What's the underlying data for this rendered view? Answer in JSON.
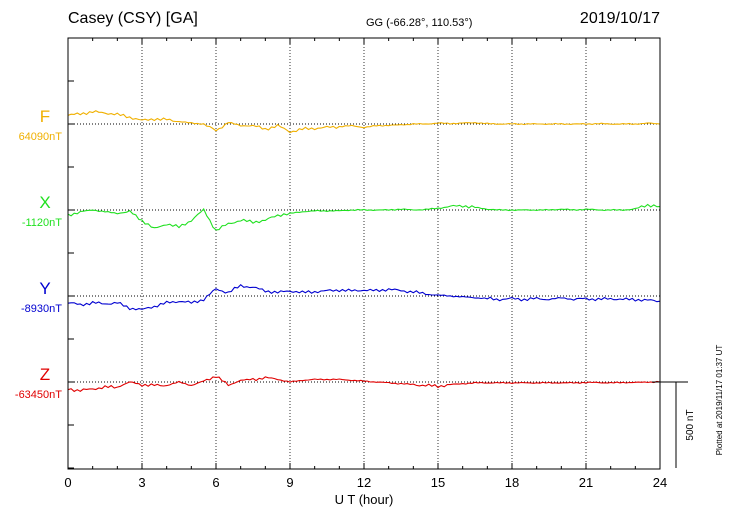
{
  "header": {
    "station": "Casey (CSY)  [GA]",
    "coords": "GG (-66.28°, 110.53°)",
    "date": "2019/10/17"
  },
  "colors": {
    "F": "#f0b000",
    "X": "#20e020",
    "Y": "#0000d0",
    "Z": "#e00000"
  },
  "chart_data": {
    "type": "line",
    "title": "Casey (CSY)  [GA]",
    "xlabel": "U T (hour)",
    "xlim": [
      0,
      24
    ],
    "x_ticks": [
      "0",
      "3",
      "6",
      "9",
      "12",
      "15",
      "18",
      "21",
      "24"
    ],
    "scale_label": "500 nT",
    "scale_nT": 500,
    "plotted_note": "Plotted at 2019/11/17 01:37 UT",
    "grid": true,
    "x": [
      0,
      0.5,
      1,
      1.5,
      2,
      2.5,
      3,
      3.5,
      4,
      4.5,
      5,
      5.5,
      6,
      6.5,
      7,
      7.5,
      8,
      8.5,
      9,
      9.5,
      10,
      10.5,
      11,
      11.5,
      12,
      12.5,
      13,
      13.5,
      14,
      14.5,
      15,
      15.5,
      16,
      16.5,
      17,
      17.5,
      18,
      18.5,
      19,
      19.5,
      20,
      20.5,
      21,
      21.5,
      22,
      22.5,
      23,
      23.5,
      24
    ],
    "series": [
      {
        "name": "F",
        "baseline": "64090nT",
        "values": [
          50,
          60,
          70,
          65,
          55,
          40,
          20,
          30,
          25,
          15,
          5,
          0,
          -40,
          10,
          -10,
          -10,
          -30,
          -10,
          -45,
          -30,
          -25,
          -20,
          -15,
          -10,
          -20,
          -10,
          -8,
          -5,
          0,
          0,
          5,
          3,
          5,
          8,
          2,
          0,
          0,
          0,
          0,
          0,
          0,
          0,
          0,
          2,
          0,
          0,
          0,
          5,
          0
        ]
      },
      {
        "name": "X",
        "baseline": "-1120nT",
        "values": [
          -30,
          -10,
          0,
          -10,
          -20,
          -10,
          -60,
          -110,
          -80,
          -100,
          -60,
          0,
          -120,
          -80,
          -60,
          -70,
          -60,
          -30,
          -20,
          -10,
          -5,
          -5,
          -5,
          0,
          0,
          0,
          0,
          5,
          0,
          3,
          10,
          20,
          25,
          15,
          5,
          0,
          0,
          0,
          0,
          0,
          5,
          0,
          5,
          0,
          0,
          0,
          5,
          30,
          20
        ]
      },
      {
        "name": "Y",
        "baseline": "-8930nT",
        "values": [
          -40,
          -50,
          -40,
          -45,
          -40,
          -70,
          -80,
          -60,
          -40,
          -30,
          -40,
          -20,
          40,
          20,
          60,
          50,
          30,
          20,
          30,
          20,
          25,
          30,
          35,
          30,
          35,
          30,
          40,
          30,
          25,
          10,
          5,
          0,
          -5,
          -10,
          -15,
          -20,
          -15,
          -20,
          -15,
          -20,
          -10,
          -20,
          -15,
          -20,
          -15,
          -20,
          -20,
          -25,
          -30
        ]
      },
      {
        "name": "Z",
        "baseline": "-63450nT",
        "values": [
          -40,
          -50,
          -40,
          -30,
          -30,
          0,
          -15,
          -20,
          -20,
          0,
          -20,
          5,
          35,
          -20,
          10,
          15,
          25,
          15,
          0,
          10,
          15,
          15,
          15,
          10,
          5,
          0,
          -5,
          -10,
          -15,
          -20,
          -25,
          -15,
          -10,
          -5,
          -5,
          -5,
          -5,
          -5,
          -5,
          -5,
          -5,
          -5,
          -3,
          -3,
          -5,
          -3,
          -3,
          0,
          0
        ]
      }
    ]
  }
}
